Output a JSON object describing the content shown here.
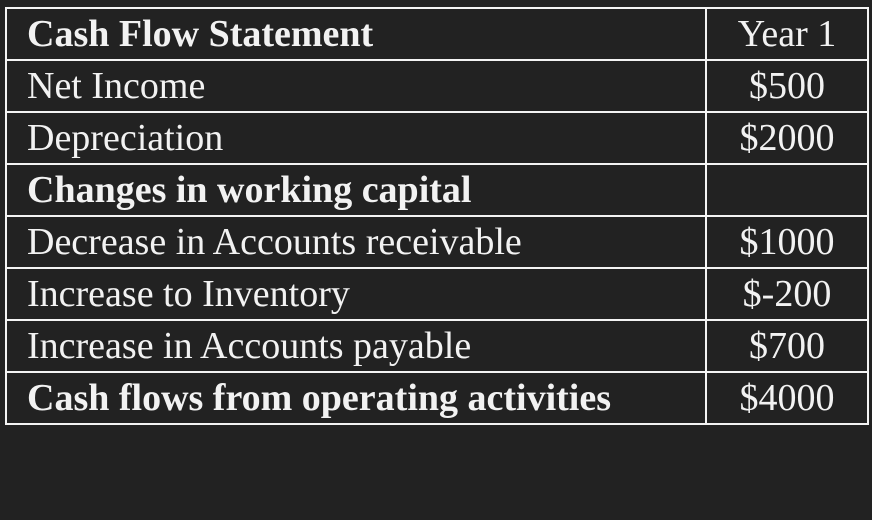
{
  "table": {
    "header": {
      "label": "Cash Flow Statement",
      "value": "Year 1"
    },
    "rows": [
      {
        "label": "Net Income",
        "value": "$500",
        "bold": false
      },
      {
        "label": "Depreciation",
        "value": "$2000",
        "bold": false
      },
      {
        "label": "Changes in working capital",
        "value": "",
        "bold": true
      },
      {
        "label": "Decrease in Accounts receivable",
        "value": "$1000",
        "bold": false
      },
      {
        "label": "Increase to Inventory",
        "value": "$-200",
        "bold": false
      },
      {
        "label": "Increase in Accounts payable",
        "value": "$700",
        "bold": false
      },
      {
        "label": "Cash flows from operating activities",
        "value": "$4000",
        "bold": true
      }
    ]
  },
  "colors": {
    "background": "#222222",
    "text": "#f2f2f2",
    "border": "#f4f4f4"
  }
}
